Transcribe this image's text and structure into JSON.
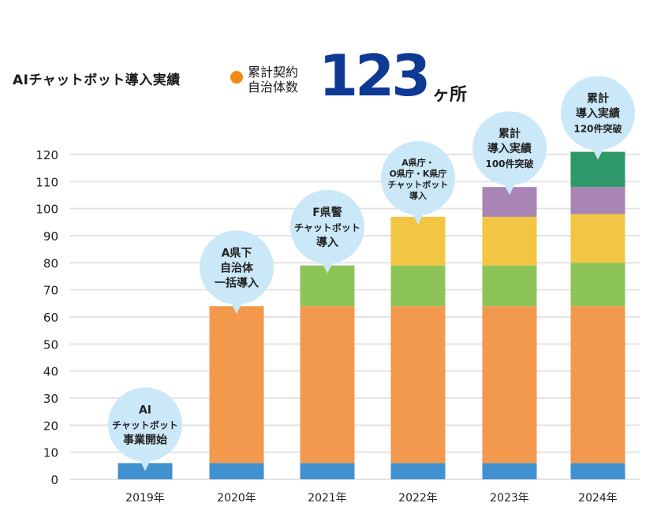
{
  "header": {
    "title": "AIチャットボット導入実績",
    "sublabel_line1": "累計契約",
    "sublabel_line2": "自治体数",
    "count": "123",
    "unit": "ヶ所",
    "dot_color": "#f08a12",
    "count_color": "#0f3a94"
  },
  "chart_data": {
    "type": "bar",
    "stacked": true,
    "title": "AIチャットボット導入実績",
    "xlabel": "",
    "ylabel": "",
    "ylim": [
      0,
      120
    ],
    "yticks": [
      0,
      10,
      20,
      30,
      40,
      50,
      60,
      70,
      80,
      90,
      100,
      110,
      120
    ],
    "grid": true,
    "categories": [
      "2019年",
      "2020年",
      "2021年",
      "2022年",
      "2023年",
      "2024年"
    ],
    "series": [
      {
        "name": "segment-1",
        "color": "#4191d0",
        "values": [
          6,
          6,
          6,
          6,
          6,
          6
        ]
      },
      {
        "name": "segment-2",
        "color": "#f2994e",
        "values": [
          0,
          58,
          58,
          58,
          58,
          58
        ]
      },
      {
        "name": "segment-3",
        "color": "#8dc457",
        "values": [
          0,
          0,
          15,
          15,
          15,
          16
        ]
      },
      {
        "name": "segment-4",
        "color": "#f2c544",
        "values": [
          0,
          0,
          0,
          18,
          18,
          18
        ]
      },
      {
        "name": "segment-5",
        "color": "#a985b5",
        "values": [
          0,
          0,
          0,
          0,
          11,
          10
        ]
      },
      {
        "name": "segment-6",
        "color": "#2e9868",
        "values": [
          0,
          0,
          0,
          0,
          0,
          13
        ]
      }
    ],
    "annotations": [
      {
        "category": "2019年",
        "lines": [
          "AI",
          "チャットボット",
          "事業開始"
        ]
      },
      {
        "category": "2020年",
        "lines": [
          "A県下",
          "自治体",
          "一括導入"
        ]
      },
      {
        "category": "2021年",
        "lines": [
          "F県警",
          "チャットボット",
          "導入"
        ]
      },
      {
        "category": "2022年",
        "lines": [
          "A県庁・",
          "O県庁・K県庁",
          "チャットボット",
          "導入"
        ]
      },
      {
        "category": "2023年",
        "lines": [
          "累計",
          "導入実績",
          "100件突破"
        ]
      },
      {
        "category": "2024年",
        "lines": [
          "累計",
          "導入実績",
          "120件突破"
        ]
      }
    ],
    "annotation_color": "#cbe8f8"
  }
}
